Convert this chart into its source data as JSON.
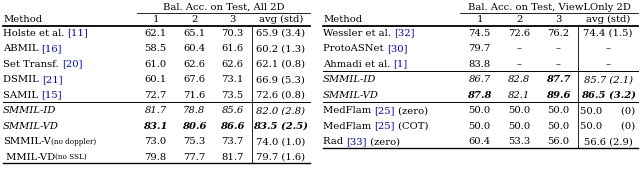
{
  "left_table": {
    "header_top": "Bal. Acc. on Test, All 2D",
    "rows": [
      {
        "method": "Holste et al. ",
        "cite": "[11]",
        "after": "",
        "vals": [
          "62.1",
          "65.1",
          "70.3",
          "65.9 (3.4)"
        ],
        "italic": false,
        "bold_vals": []
      },
      {
        "method": "ABMIL ",
        "cite": "[16]",
        "after": "",
        "vals": [
          "58.5",
          "60.4",
          "61.6",
          "60.2 (1.3)"
        ],
        "italic": false,
        "bold_vals": []
      },
      {
        "method": "Set Transf. ",
        "cite": "[20]",
        "after": "",
        "vals": [
          "61.0",
          "62.6",
          "62.6",
          "62.1 (0.8)"
        ],
        "italic": false,
        "bold_vals": []
      },
      {
        "method": "DSMIL ",
        "cite": "[21]",
        "after": "",
        "vals": [
          "60.1",
          "67.6",
          "73.1",
          "66.9 (5.3)"
        ],
        "italic": false,
        "bold_vals": []
      },
      {
        "method": "SAMIL ",
        "cite": "[15]",
        "after": "",
        "vals": [
          "72.7",
          "71.6",
          "73.5",
          "72.6 (0.8)"
        ],
        "italic": false,
        "bold_vals": [],
        "sep_after": true
      },
      {
        "method": "SMMIL-ID",
        "cite": "",
        "after": "",
        "vals": [
          "81.7",
          "78.8",
          "85.6",
          "82.0 (2.8)"
        ],
        "italic": true,
        "bold_vals": []
      },
      {
        "method": "SMMIL-VD",
        "cite": "",
        "after": "",
        "vals": [
          "83.1",
          "80.6",
          "86.6",
          "83.5 (2.5)"
        ],
        "italic": true,
        "bold_vals": [
          "83.1",
          "80.6",
          "86.6",
          "83.5"
        ]
      },
      {
        "method": "SMMIL-V",
        "cite": "",
        "after": "",
        "sub": "(no doppler)",
        "vals": [
          "73.0",
          "75.3",
          "73.7",
          "74.0 (1.0)"
        ],
        "italic": false,
        "bold_vals": []
      },
      {
        "method": " MMIL-VD",
        "cite": "",
        "after": "",
        "sub": "(no SSL)",
        "vals": [
          "79.8",
          "77.7",
          "81.7",
          "79.7 (1.6)"
        ],
        "italic": false,
        "bold_vals": []
      }
    ]
  },
  "right_table": {
    "header_top": "Bal. Acc. on Test, ViewLOnly 2D",
    "rows": [
      {
        "method": "Wessler et al. ",
        "cite": "[32]",
        "after": "",
        "vals": [
          "74.5",
          "72.6",
          "76.2",
          "74.4 (1.5)"
        ],
        "italic": false,
        "bold_vals": []
      },
      {
        "method": "ProtoASNet ",
        "cite": "[30]",
        "after": "",
        "vals": [
          "79.7",
          "–",
          "–",
          "–"
        ],
        "italic": false,
        "bold_vals": []
      },
      {
        "method": "Ahmadi et al. ",
        "cite": "[1]",
        "after": "",
        "vals": [
          "83.8",
          "–",
          "–",
          "–"
        ],
        "italic": false,
        "bold_vals": [],
        "sep_after": true
      },
      {
        "method": "SMMIL-ID",
        "cite": "",
        "after": "",
        "vals": [
          "86.7",
          "82.8",
          "87.7",
          "85.7 (2.1)"
        ],
        "italic": true,
        "bold_vals": [
          "87.7"
        ]
      },
      {
        "method": "SMMIL-VD",
        "cite": "",
        "after": "",
        "vals": [
          "87.8",
          "82.1",
          "89.6",
          "86.5 (3.2)"
        ],
        "italic": true,
        "bold_vals": [
          "87.8",
          "89.6",
          "86.5"
        ],
        "sep_after": true
      },
      {
        "method": "MedFlam ",
        "cite": "[25]",
        "after": " (zero)",
        "vals": [
          "50.0",
          "50.0",
          "50.0",
          "50.0      (0)"
        ],
        "italic": false,
        "bold_vals": []
      },
      {
        "method": "MedFlam ",
        "cite": "[25]",
        "after": " (COT)",
        "vals": [
          "50.0",
          "50.0",
          "50.0",
          "50.0      (0)"
        ],
        "italic": false,
        "bold_vals": []
      },
      {
        "method": "Rad ",
        "cite": "[33]",
        "after": " (zero)",
        "vals": [
          "60.4",
          "53.3",
          "56.0",
          "56.6 (2.9)"
        ],
        "italic": false,
        "bold_vals": []
      }
    ]
  },
  "cite_color": "#0000BB",
  "fs": 7.2,
  "fs_sub": 5.2
}
